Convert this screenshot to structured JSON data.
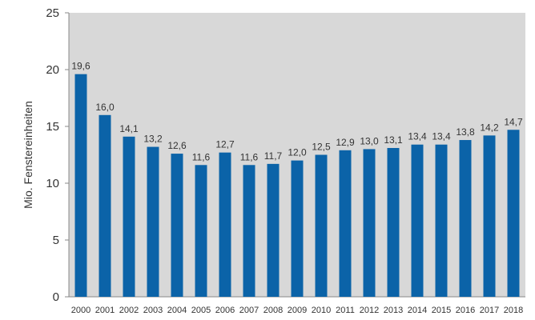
{
  "chart_data": {
    "type": "bar",
    "title": "",
    "xlabel": "",
    "ylabel": "Mio. Fenstereinheiten",
    "ylim": [
      0,
      25
    ],
    "yticks": [
      0,
      5,
      10,
      15,
      20,
      25
    ],
    "ytick_labels": [
      "0",
      "5",
      "10",
      "15",
      "20",
      "25"
    ],
    "grid": false,
    "legend": "none",
    "categories": [
      "2000",
      "2001",
      "2002",
      "2003",
      "2004",
      "2005",
      "2006",
      "2007",
      "2008",
      "2009",
      "2010",
      "2011",
      "2012",
      "2013",
      "2014",
      "2015",
      "2016",
      "2017",
      "2018"
    ],
    "values": [
      19.6,
      16.0,
      14.1,
      13.2,
      12.6,
      11.6,
      12.7,
      11.6,
      11.7,
      12.0,
      12.5,
      12.9,
      13.0,
      13.1,
      13.4,
      13.4,
      13.8,
      14.2,
      14.7
    ],
    "value_labels": [
      "19,6",
      "16,0",
      "14,1",
      "13,2",
      "12,6",
      "11,6",
      "12,7",
      "11,6",
      "11,7",
      "12,0",
      "12,5",
      "12,9",
      "13,0",
      "13,1",
      "13,4",
      "13,4",
      "13,8",
      "14,2",
      "14,7"
    ],
    "colors": {
      "bar": "#0b63a8",
      "plot_background": "#d8d8d8",
      "axis": "#888888",
      "text": "#333333"
    }
  }
}
